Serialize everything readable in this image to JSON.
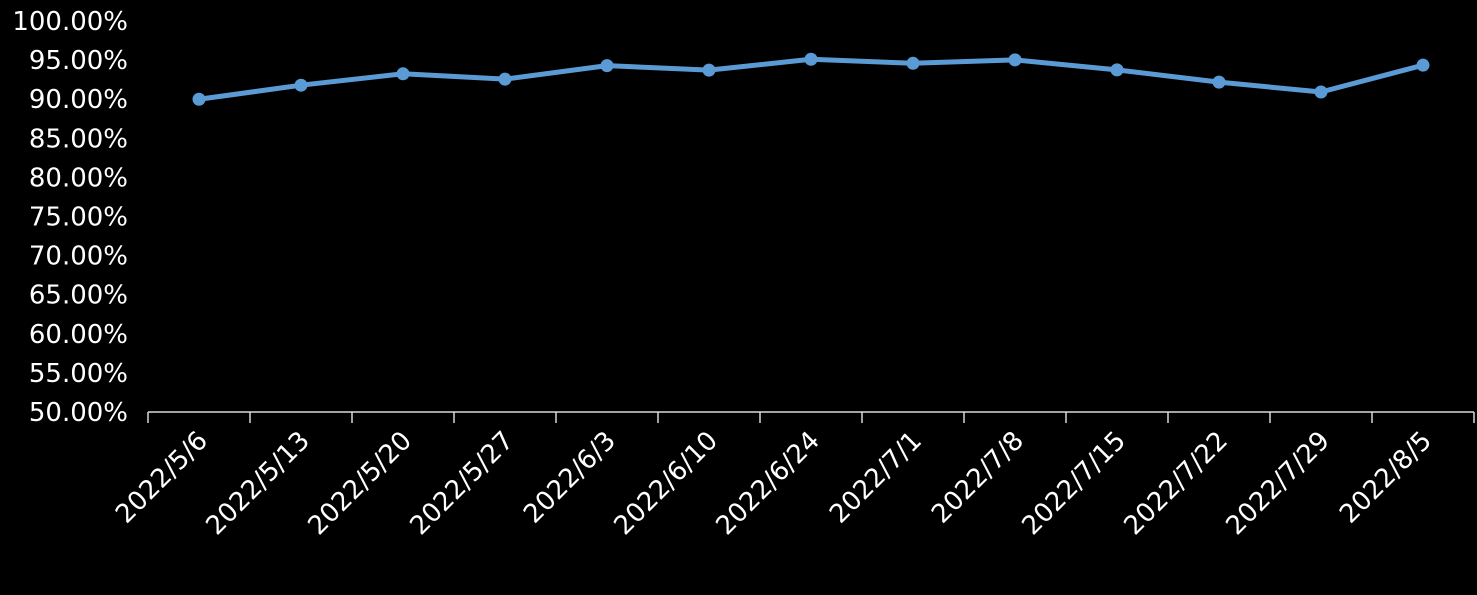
{
  "colors": {
    "background": "#000000",
    "series": "#5B9BD5",
    "text": "#FFFFFF",
    "axis": "#D9D9D9"
  },
  "chart_data": {
    "type": "line",
    "categories": [
      "2022/5/6",
      "2022/5/13",
      "2022/5/20",
      "2022/5/27",
      "2022/6/3",
      "2022/6/10",
      "2022/6/24",
      "2022/7/1",
      "2022/7/8",
      "2022/7/15",
      "2022/7/22",
      "2022/7/29",
      "2022/8/5"
    ],
    "series": [
      {
        "values": [
          0.8999,
          0.9179,
          0.9325,
          0.9256,
          0.9429,
          0.9372,
          0.9511,
          0.9459,
          0.9503,
          0.9375,
          0.9218,
          0.9092,
          0.9435
        ]
      }
    ],
    "ylim": [
      0.5,
      1.0
    ],
    "y_ticks": [
      "100.00%",
      "95.00%",
      "90.00%",
      "85.00%",
      "80.00%",
      "75.00%",
      "70.00%",
      "65.00%",
      "60.00%",
      "55.00%",
      "50.00%"
    ],
    "grid": false,
    "legend": "none",
    "markers": true
  }
}
